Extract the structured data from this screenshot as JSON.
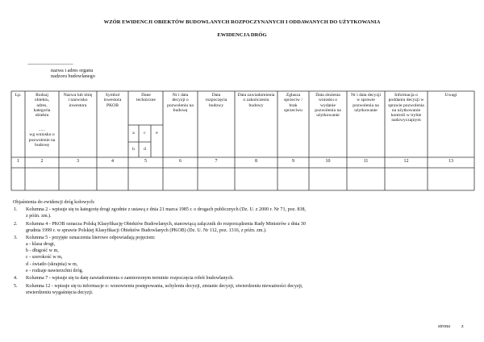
{
  "title": "WZÓR EWIDENCJI OBIEKTÓW BUDOWLANYCH ROZPOCZYNANYCH I ODDAWANYCH DO UŻYTKOWANIA",
  "subtitle": "EWIDENCJA DRÓG",
  "organ": {
    "dots": "...........................................................................",
    "line1": "nazwa i adres organu",
    "line2": "nadzoru budowlanego"
  },
  "table": {
    "headers": [
      "Lp.",
      "Rodzaj obiektu, adres, kategoria obiektu",
      "Nazwa lub imię i nazwisko inwestora",
      "Symbol inwestora PKOB",
      "Dane techniczne",
      "Nr i data decyzji o pozwoleniu na budowę",
      "Data rozpoczęcia budowy",
      "Data zawiadomienia o zakończeniu budowy",
      "Zgłasza sprzeciw / brak sprzeciwu",
      "Data złożenia wniosku o wydanie pozwolenia na użytkowanie",
      "Nr i data decyzji w sprawie pozwolenia na użytkowanie",
      "Informacja o poddaniu decyzji w sprawie pozwolenia na użytkowanie kontroli w trybie nadzwyczajnym",
      "Uwagi"
    ],
    "col2_extra": "......\nwg wniosku o pozwolenie na budowę",
    "sub": {
      "a": "a",
      "b": "b",
      "c": "c",
      "d": "d",
      "e": "e"
    },
    "numbers": [
      "1",
      "2",
      "3",
      "4",
      "5",
      "6",
      "7",
      "8",
      "9",
      "10",
      "11",
      "12",
      "13"
    ]
  },
  "notes": {
    "heading": "Objaśnienia do ewidencji dróg kołowych:",
    "n1": "1.",
    "t1a": "Kolumna 2  - wpisuje się tu kategorię drogi zgodnie z ustawą z dnia 21 marca 1985 r. o drogach publicznych (Dz. U. z 2000 r. Nr 71, poz. 838,",
    "t1b": "z późn. zm.).",
    "n2": "2.",
    "t2a": "Kolumna 4  - PKOB oznacza Polską Klasyfikację Obiektów Budowlanych, stanowiącą załącznik do rozporządzenia Rady Ministrów z dnia 30",
    "t2b": "grudnia 1999 r. w sprawie Polskiej Klasyfikacji Obiektów Budowlanych (PKOB) (Dz. U. Nr 112, poz. 1316, z późn. zm.).",
    "n3": "3.",
    "t3": "Kolumna 5  - przyjęte oznaczenia literowe odpowiadają pojęciom:",
    "letters": [
      "a -   klasa drogi,",
      "b -   długość w m,",
      "c -   szerokość w m,",
      "d -   światło (skrajnia) w m,",
      "e -   rodzaje nawierzchni dróg."
    ],
    "n4": "4.",
    "t4": "Kolumna 7  - wpisuje się tu datę zawiadomienia o zamierzonym terminie rozpoczęcia robót budowlanych.",
    "n5": "5.",
    "t5a": "Kolumna 12  - wpisuje się tu informacje o: wznowieniu postępowania, uchyleniu decyzji, zmianie decyzji, stwierdzeniu nieważności decyzji,",
    "t5b": "stwierdzeniu wygaśnięcia decyzji."
  },
  "footer": {
    "page": "strona",
    "of": "z"
  }
}
